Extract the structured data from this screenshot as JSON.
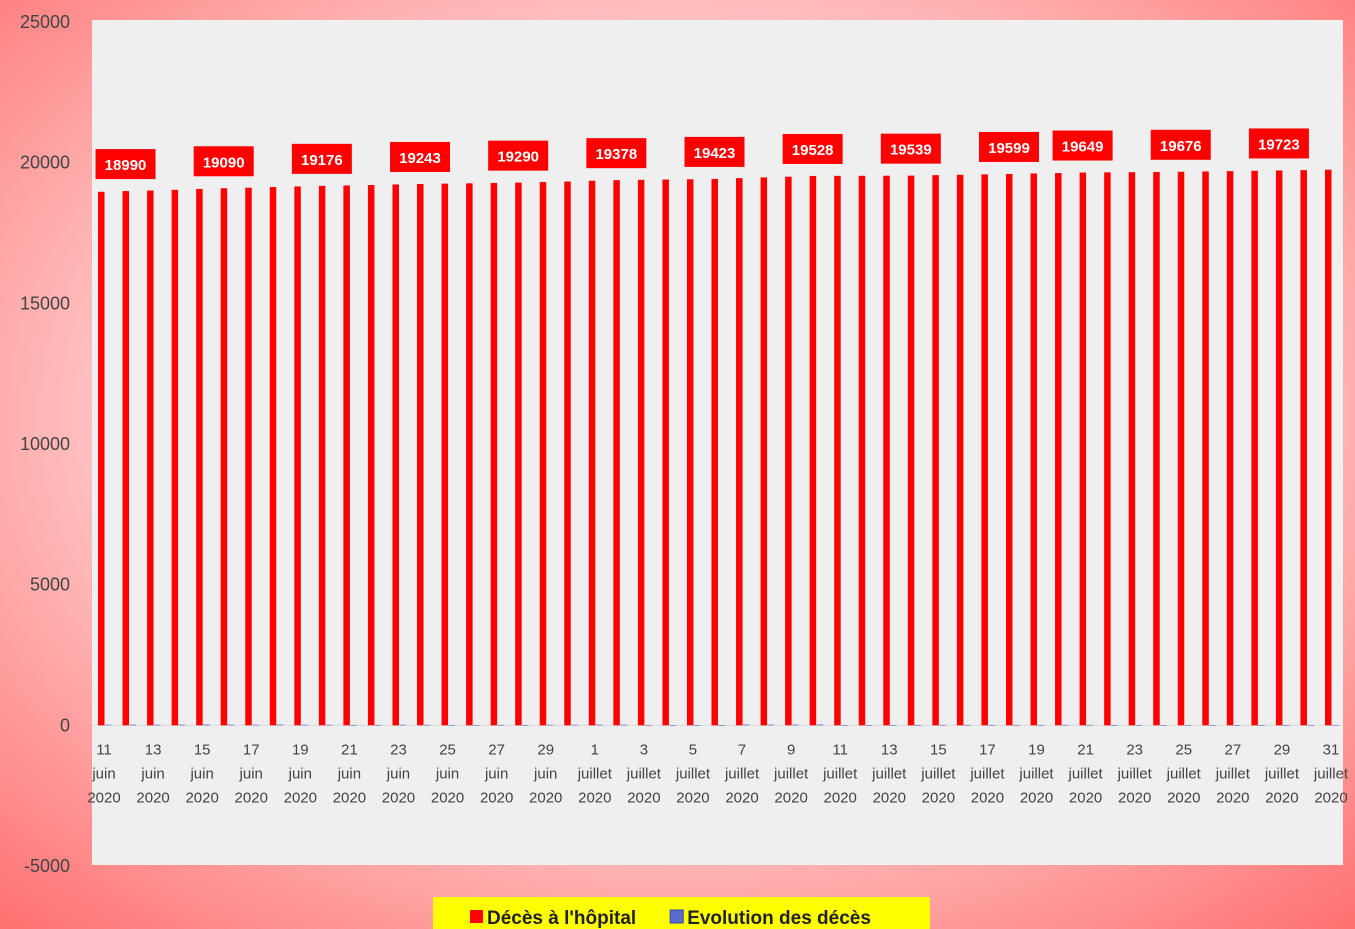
{
  "chart_data": {
    "type": "bar",
    "categories": [
      "11 juin 2020",
      null,
      "13 juin 2020",
      null,
      "15 juin 2020",
      null,
      "17 juin 2020",
      null,
      "19 juin 2020",
      null,
      "21 juin 2020",
      null,
      "23 juin 2020",
      null,
      "25 juin 2020",
      null,
      "27 juin 2020",
      null,
      "29 juin 2020",
      null,
      "1 juillet 2020",
      null,
      "3 juillet 2020",
      null,
      "5 juillet 2020",
      null,
      "7 juillet 2020",
      null,
      "9 juillet 2020",
      null,
      "11 juillet 2020",
      null,
      "13 juillet 2020",
      null,
      "15 juillet 2020",
      null,
      "17 juillet 2020",
      null,
      "19 juillet 2020",
      null,
      "21 juillet 2020",
      null,
      "23 juillet 2020",
      null,
      "25 juillet 2020",
      null,
      "27 juillet 2020",
      null,
      "29 juillet 2020",
      null,
      "31 juillet 2020"
    ],
    "series": [
      {
        "name": "Décès à l'hôpital",
        "color": "#ff0000",
        "values": [
          18965,
          18990,
          19010,
          19035,
          19065,
          19090,
          19110,
          19135,
          19155,
          19176,
          19190,
          19205,
          19225,
          19243,
          19255,
          19265,
          19280,
          19290,
          19310,
          19330,
          19355,
          19378,
          19390,
          19400,
          19410,
          19423,
          19450,
          19475,
          19500,
          19528,
          19530,
          19533,
          19536,
          19539,
          19555,
          19570,
          19585,
          19599,
          19615,
          19632,
          19649,
          19655,
          19662,
          19669,
          19676,
          19688,
          19700,
          19712,
          19723,
          19735,
          19750
        ],
        "value_labels": [
          null,
          "18990",
          null,
          null,
          null,
          "19090",
          null,
          null,
          null,
          "19176",
          null,
          null,
          null,
          "19243",
          null,
          null,
          null,
          "19290",
          null,
          null,
          null,
          "19378",
          null,
          null,
          null,
          "19423",
          null,
          null,
          null,
          "19528",
          null,
          null,
          null,
          "19539",
          null,
          null,
          null,
          "19599",
          null,
          null,
          "19649",
          null,
          null,
          null,
          "19676",
          null,
          null,
          null,
          "19723",
          null,
          null
        ]
      },
      {
        "name": "Evolution des décès",
        "color": "#5b6bd0",
        "values": [
          22,
          25,
          20,
          25,
          30,
          25,
          20,
          25,
          20,
          21,
          14,
          15,
          20,
          18,
          12,
          10,
          15,
          10,
          20,
          20,
          25,
          23,
          12,
          10,
          10,
          13,
          27,
          25,
          25,
          28,
          2,
          3,
          3,
          3,
          16,
          15,
          15,
          14,
          16,
          17,
          17,
          6,
          7,
          7,
          7,
          12,
          12,
          12,
          11,
          12,
          15
        ]
      }
    ],
    "ylim": [
      -5000,
      25000
    ],
    "yticks": [
      -5000,
      0,
      5000,
      10000,
      15000,
      20000,
      25000
    ],
    "legend": "bottom"
  }
}
